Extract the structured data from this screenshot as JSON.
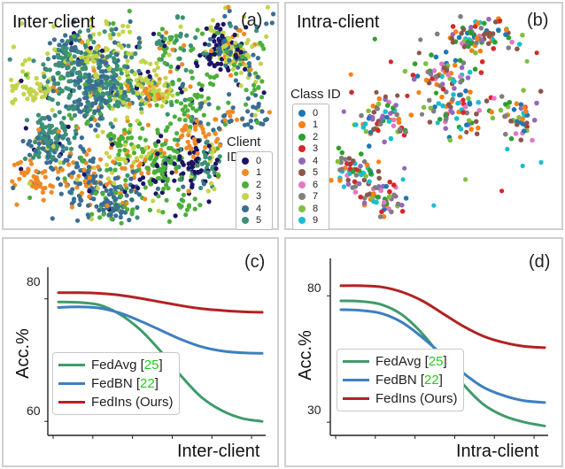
{
  "panels": {
    "a": {
      "title": "Inter-client",
      "label": "(a)"
    },
    "b": {
      "title": "Intra-client",
      "label": "(b)"
    },
    "c": {
      "label": "(c)"
    },
    "d": {
      "label": "(d)"
    }
  },
  "scatter_a": {
    "legend_title": "Client ID",
    "ids": [
      "0",
      "1",
      "2",
      "3",
      "4",
      "5"
    ],
    "colors": [
      "#1b1464",
      "#f08a24",
      "#4caf3a",
      "#c4d44a",
      "#3a6e92",
      "#3c8f78"
    ]
  },
  "scatter_b": {
    "legend_title": "Class ID",
    "ids": [
      "0",
      "1",
      "2",
      "3",
      "4",
      "5",
      "6",
      "7",
      "8",
      "9"
    ],
    "colors": [
      "#1f77b4",
      "#ff7f0e",
      "#2ca02c",
      "#d62728",
      "#9467bd",
      "#8c564b",
      "#e377c2",
      "#7f7f7f",
      "#7fbf3f",
      "#17becf"
    ]
  },
  "chart_data": [
    {
      "type": "line",
      "panel": "(c)",
      "xlabel": "Inter-client",
      "ylabel": "Acc.%",
      "yticks": [
        80,
        60
      ],
      "ylim": [
        58,
        84
      ],
      "x": [
        0,
        1,
        2,
        3,
        4,
        5,
        6,
        7,
        8,
        9,
        10
      ],
      "series": [
        {
          "name": "FedAvg",
          "ref": "25",
          "color": "#3f9b6b",
          "values": [
            79.5,
            79.4,
            79.0,
            77.5,
            75.0,
            71.5,
            67.5,
            64.0,
            61.8,
            60.5,
            60.0
          ]
        },
        {
          "name": "FedBN",
          "ref": "22",
          "color": "#3d7fc0",
          "values": [
            78.6,
            78.7,
            78.5,
            77.7,
            76.4,
            74.9,
            73.4,
            72.2,
            71.5,
            71.2,
            71.1
          ]
        },
        {
          "name": "FedIns (Ours)",
          "ref": "",
          "color": "#b22222",
          "values": [
            81.0,
            81.0,
            80.9,
            80.6,
            80.1,
            79.5,
            78.9,
            78.4,
            78.1,
            77.9,
            77.8
          ]
        }
      ]
    },
    {
      "type": "line",
      "panel": "(d)",
      "xlabel": "Intra-client",
      "ylabel": "Acc.%",
      "yticks": [
        80,
        30
      ],
      "ylim": [
        22,
        92
      ],
      "x": [
        0,
        1,
        2,
        3,
        4,
        5,
        6,
        7,
        8,
        9,
        10
      ],
      "series": [
        {
          "name": "FedAvg",
          "ref": "25",
          "color": "#3f9b6b",
          "values": [
            78.0,
            77.8,
            76.5,
            72.5,
            65.0,
            55.0,
            45.0,
            37.0,
            32.5,
            30.0,
            28.5
          ]
        },
        {
          "name": "FedBN",
          "ref": "22",
          "color": "#3d7fc0",
          "values": [
            74.5,
            74.2,
            73.0,
            69.5,
            63.5,
            56.5,
            49.5,
            43.8,
            40.5,
            38.5,
            37.8
          ]
        },
        {
          "name": "FedIns (Ours)",
          "ref": "",
          "color": "#b22222",
          "values": [
            84.0,
            84.0,
            83.5,
            81.5,
            78.0,
            73.0,
            68.0,
            64.0,
            61.5,
            60.0,
            59.5
          ]
        }
      ]
    }
  ]
}
